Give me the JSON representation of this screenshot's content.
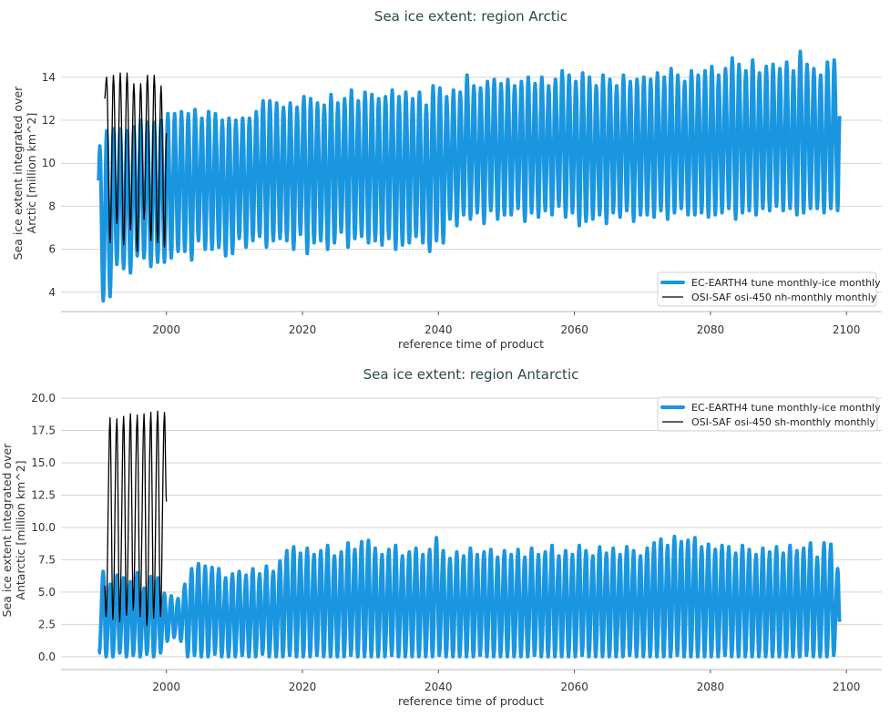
{
  "chart_data": [
    {
      "type": "line",
      "title": "Sea ice extent: region Arctic",
      "xlabel": "reference time of product",
      "ylabel": [
        "Sea ice extent integrated over",
        "Arctic [million km^2]"
      ],
      "xlim": [
        1984.5,
        2105.2
      ],
      "ylim": [
        3.1,
        15.9
      ],
      "xticks": [
        2000,
        2020,
        2040,
        2060,
        2080,
        2100
      ],
      "yticks": [
        4,
        6,
        8,
        10,
        12,
        14
      ],
      "ytick_labels": [
        "4",
        "6",
        "8",
        "10",
        "12",
        "14"
      ],
      "grid": "horizontal",
      "legend_position": "bottom-right",
      "max_month": 2.5,
      "min_month": 8.5,
      "series": [
        {
          "name": "EC-EARTH4 tune monthly-ice monthly",
          "color": "#1a96e0",
          "first_year": 1990,
          "start": [
            1990.0,
            9.2
          ],
          "end": [
            2099.0,
            12.2
          ],
          "annual_max": [
            10.8,
            11.5,
            11.6,
            11.6,
            11.5,
            11.7,
            12.0,
            11.9,
            11.9,
            12.0,
            12.3,
            12.3,
            12.4,
            12.3,
            12.5,
            12.1,
            12.4,
            12.3,
            12.0,
            12.1,
            12.0,
            12.1,
            12.1,
            12.4,
            12.9,
            12.9,
            12.8,
            12.6,
            12.8,
            12.6,
            13.1,
            13.0,
            12.8,
            12.7,
            13.2,
            12.8,
            13.0,
            13.4,
            12.9,
            13.3,
            13.2,
            13.0,
            13.1,
            13.4,
            13.1,
            13.3,
            13.0,
            13.3,
            12.7,
            13.6,
            13.5,
            13.1,
            13.4,
            13.3,
            14.1,
            13.6,
            13.5,
            13.8,
            13.9,
            13.7,
            13.9,
            13.6,
            13.8,
            14.0,
            13.7,
            14.0,
            13.6,
            13.9,
            14.3,
            14.1,
            13.8,
            14.2,
            14.0,
            13.6,
            14.1,
            13.9,
            13.6,
            14.1,
            13.8,
            13.9,
            14.0,
            13.9,
            14.2,
            14.0,
            14.4,
            14.1,
            13.8,
            14.3,
            14.1,
            14.3,
            14.5,
            14.1,
            14.4,
            14.9,
            14.6,
            14.3,
            14.8,
            14.2,
            14.5,
            14.6,
            14.4,
            14.7,
            14.3,
            15.2,
            14.6,
            14.4,
            14.1,
            14.7,
            14.8
          ],
          "annual_min": [
            3.6,
            3.8,
            5.3,
            5.1,
            4.9,
            5.7,
            5.6,
            5.2,
            5.4,
            5.4,
            5.6,
            5.9,
            5.9,
            5.5,
            6.4,
            6.0,
            6.0,
            6.1,
            5.7,
            5.8,
            6.5,
            6.1,
            6.4,
            6.6,
            6.1,
            6.4,
            6.5,
            6.4,
            6.0,
            6.7,
            5.8,
            6.3,
            6.4,
            6.0,
            6.3,
            6.8,
            6.1,
            6.5,
            6.6,
            6.3,
            6.4,
            6.2,
            6.5,
            6.0,
            6.2,
            6.3,
            6.6,
            6.3,
            5.9,
            6.4,
            6.3,
            7.4,
            7.1,
            7.6,
            7.4,
            7.7,
            7.2,
            7.8,
            7.4,
            7.6,
            7.6,
            7.9,
            7.3,
            7.7,
            7.5,
            7.8,
            7.6,
            8.0,
            7.5,
            7.7,
            7.1,
            7.3,
            7.4,
            7.6,
            7.2,
            7.7,
            7.5,
            7.8,
            7.3,
            7.6,
            7.6,
            7.5,
            7.8,
            7.4,
            7.7,
            7.9,
            7.6,
            7.6,
            7.7,
            7.5,
            7.6,
            7.7,
            7.9,
            7.4,
            7.7,
            7.8,
            7.6,
            7.9,
            7.8,
            8.0,
            7.8,
            7.9,
            7.6,
            7.7,
            7.9,
            7.9,
            7.7,
            7.9,
            7.8
          ]
        },
        {
          "name": "OSI-SAF osi-450 nh-monthly monthly",
          "color": "#000000",
          "first_year": 1991,
          "start": [
            1990.9,
            13.0
          ],
          "end": [
            2000.0,
            11.4
          ],
          "annual_max": [
            14.0,
            14.1,
            14.2,
            14.2,
            13.7,
            13.7,
            14.1,
            14.1,
            13.6
          ],
          "annual_min": [
            6.3,
            7.2,
            6.2,
            6.9,
            5.9,
            7.4,
            6.4,
            6.3,
            6.1
          ]
        }
      ]
    },
    {
      "type": "line",
      "title": "Sea ice extent: region Antarctic",
      "xlabel": "reference time of product",
      "ylabel": [
        "Sea ice extent integrated over",
        "Antarctic [million km^2]"
      ],
      "xlim": [
        1984.5,
        2105.2
      ],
      "ylim": [
        -1.0,
        20.5
      ],
      "xticks": [
        2000,
        2020,
        2040,
        2060,
        2080,
        2100
      ],
      "yticks": [
        0,
        2.5,
        5,
        7.5,
        10,
        12.5,
        15,
        17.5,
        20
      ],
      "ytick_labels": [
        "0.0",
        "2.5",
        "5.0",
        "7.5",
        "10.0",
        "12.5",
        "15.0",
        "17.5",
        "20.0"
      ],
      "grid": "horizontal",
      "legend_position": "top-right",
      "max_month": 8.5,
      "min_month": 1.5,
      "series": [
        {
          "name": "EC-EARTH4 tune monthly-ice monthly",
          "color": "#1a96e0",
          "first_year": 1990,
          "start": [
            1990.0,
            0.3
          ],
          "end": [
            2099.0,
            2.7
          ],
          "annual_max": [
            6.6,
            5.6,
            6.3,
            6.1,
            5.8,
            6.5,
            5.3,
            6.2,
            6.1,
            4.9,
            4.7,
            4.5,
            5.6,
            6.8,
            7.2,
            7.0,
            6.9,
            6.8,
            6.1,
            6.4,
            6.6,
            6.3,
            6.8,
            6.4,
            7.0,
            6.6,
            7.4,
            8.2,
            8.5,
            8.0,
            8.4,
            7.9,
            8.2,
            8.6,
            7.8,
            8.1,
            8.8,
            8.3,
            8.9,
            9.0,
            8.4,
            7.9,
            8.3,
            8.6,
            7.8,
            8.1,
            8.4,
            7.9,
            8.3,
            9.2,
            8.2,
            7.6,
            8.1,
            7.8,
            8.4,
            7.9,
            8.1,
            8.3,
            7.7,
            8.2,
            7.9,
            8.3,
            7.7,
            8.4,
            7.9,
            8.1,
            8.6,
            7.8,
            8.2,
            7.9,
            8.6,
            8.2,
            7.8,
            8.5,
            8.0,
            8.4,
            7.9,
            8.5,
            8.2,
            7.8,
            8.4,
            8.8,
            9.1,
            8.6,
            9.3,
            8.9,
            9.0,
            9.2,
            8.5,
            8.7,
            8.3,
            8.6,
            8.5,
            8.0,
            8.6,
            8.3,
            7.9,
            8.4,
            8.1,
            8.5,
            8.0,
            8.6,
            8.2,
            8.4,
            8.8,
            7.7,
            8.8,
            8.7,
            6.8
          ],
          "annual_min": [
            0.3,
            0.0,
            0.0,
            0.3,
            0.0,
            0.1,
            0.0,
            0.2,
            0.0,
            0.3,
            1.2,
            1.5,
            1.2,
            0.0,
            0.1,
            0.0,
            0.0,
            0.2,
            0.0,
            0.0,
            0.0,
            0.1,
            0.0,
            0.0,
            0.2,
            0.0,
            0.0,
            0.0,
            0.1,
            0.0,
            0.0,
            0.0,
            0.1,
            0.0,
            0.0,
            0.0,
            0.0,
            0.1,
            0.0,
            0.0,
            0.0,
            0.0,
            0.0,
            0.1,
            0.0,
            0.0,
            0.0,
            0.0,
            0.0,
            0.0,
            0.1,
            0.0,
            0.0,
            0.0,
            0.0,
            0.0,
            0.1,
            0.0,
            0.0,
            0.0,
            0.0,
            0.0,
            0.0,
            0.0,
            0.1,
            0.0,
            0.0,
            0.0,
            0.0,
            0.0,
            0.0,
            0.1,
            0.0,
            0.0,
            0.0,
            0.0,
            0.0,
            0.0,
            0.1,
            0.0,
            0.0,
            0.0,
            0.0,
            0.0,
            0.0,
            0.1,
            0.0,
            0.0,
            0.0,
            0.0,
            0.0,
            0.0,
            0.1,
            0.0,
            0.0,
            0.0,
            0.0,
            0.0,
            0.0,
            0.0,
            0.0,
            0.0,
            0.0,
            0.0,
            0.1,
            0.0,
            0.0,
            0.0,
            0.1
          ]
        },
        {
          "name": "OSI-SAF osi-450 sh-monthly monthly",
          "color": "#000000",
          "first_year": 1991,
          "start": [
            1990.9,
            5.5
          ],
          "end": [
            2000.0,
            12.0
          ],
          "annual_max": [
            18.5,
            18.4,
            18.6,
            18.8,
            18.7,
            18.8,
            18.9,
            19.0,
            18.9
          ],
          "annual_min": [
            3.1,
            2.9,
            2.7,
            3.2,
            3.6,
            3.1,
            2.4,
            3.0,
            3.1
          ]
        }
      ]
    }
  ]
}
